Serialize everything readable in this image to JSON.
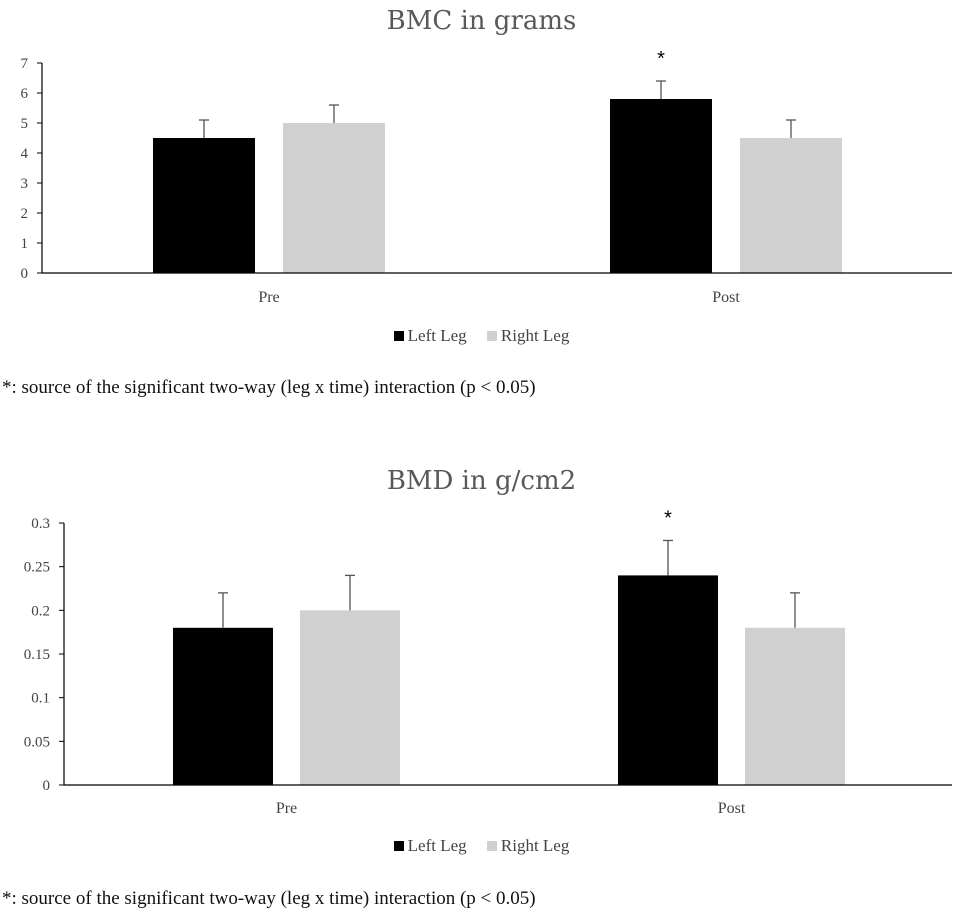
{
  "colors": {
    "left_leg": "#000000",
    "right_leg": "#d0d0d0",
    "axis": "#000000",
    "errorbar": "#555555"
  },
  "chart_data": [
    {
      "type": "bar",
      "title": "BMC in grams",
      "categories": [
        "Pre",
        "Post"
      ],
      "series": [
        {
          "name": "Left Leg",
          "values": [
            4.5,
            5.8
          ],
          "errors": [
            0.6,
            0.6
          ]
        },
        {
          "name": "Right Leg",
          "values": [
            5.0,
            4.5
          ],
          "errors": [
            0.6,
            0.6
          ]
        }
      ],
      "ylim": [
        0,
        7
      ],
      "yticks": [
        "0",
        "1",
        "2",
        "3",
        "4",
        "5",
        "6",
        "7"
      ],
      "annotations": [
        {
          "category": "Post",
          "series": "Left Leg",
          "text": "*"
        }
      ],
      "legend": "bottom",
      "grid": false,
      "footnote": "*: source of the significant two-way (leg x time) interaction (p < 0.05)"
    },
    {
      "type": "bar",
      "title": "BMD in g/cm2",
      "categories": [
        "Pre",
        "Post"
      ],
      "series": [
        {
          "name": "Left Leg",
          "values": [
            0.18,
            0.24
          ],
          "errors": [
            0.04,
            0.04
          ]
        },
        {
          "name": "Right Leg",
          "values": [
            0.2,
            0.18
          ],
          "errors": [
            0.04,
            0.04
          ]
        }
      ],
      "ylim": [
        0,
        0.3
      ],
      "yticks": [
        "0",
        "0.05",
        "0.1",
        "0.15",
        "0.2",
        "0.25",
        "0.3"
      ],
      "annotations": [
        {
          "category": "Post",
          "series": "Left Leg",
          "text": "*"
        }
      ],
      "legend": "bottom",
      "grid": false,
      "footnote": "*: source of the significant two-way (leg x time) interaction (p < 0.05)"
    }
  ]
}
